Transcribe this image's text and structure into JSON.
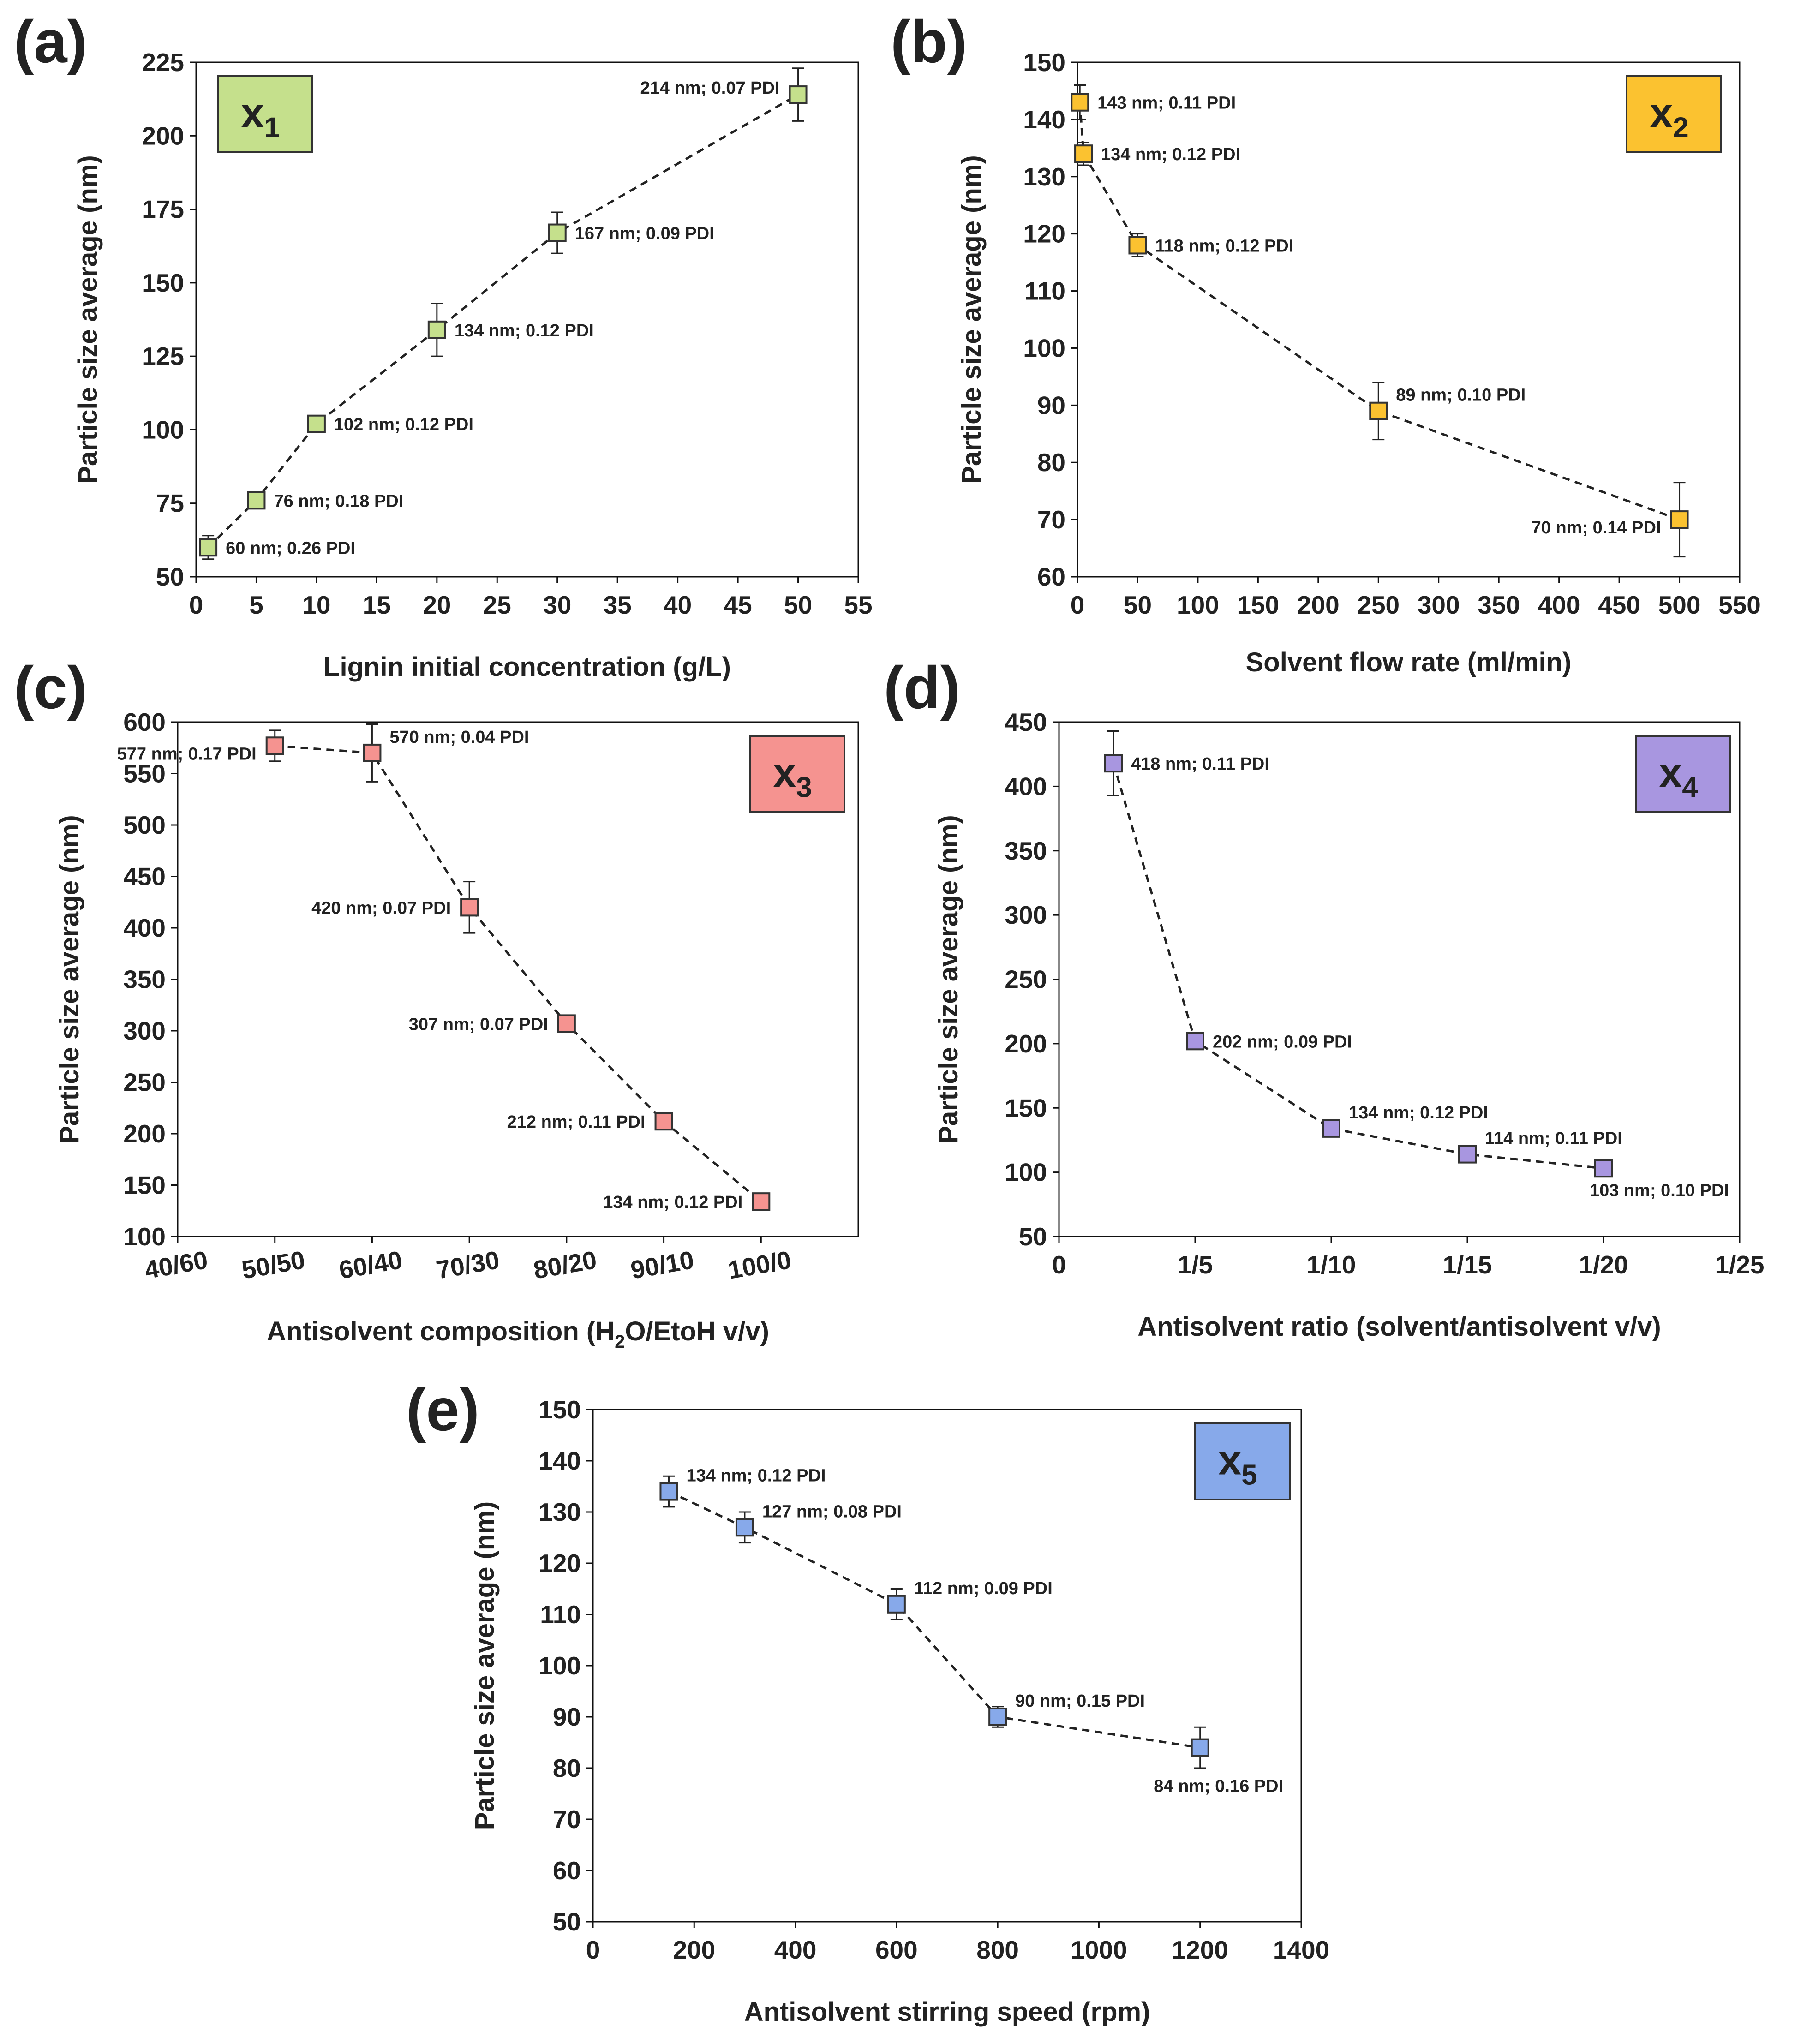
{
  "chart_data": [
    {
      "type": "line",
      "panel": "(a)",
      "badge": {
        "text": "x",
        "sub": "1",
        "color": "#c5e08c"
      },
      "marker_color": "#c5e08c",
      "xlabel": "Lignin initial concentration (g/L)",
      "ylabel": "Particle size average (nm)",
      "xlim": [
        0,
        55
      ],
      "ylim": [
        50,
        225
      ],
      "xticks": [
        0,
        5,
        10,
        15,
        20,
        25,
        30,
        35,
        40,
        45,
        50,
        55
      ],
      "yticks": [
        50,
        75,
        100,
        125,
        150,
        175,
        200,
        225
      ],
      "points": [
        {
          "x": 1,
          "y": 60,
          "err": 4,
          "label": "60 nm; 0.26 PDI",
          "pos": "right"
        },
        {
          "x": 5,
          "y": 76,
          "err": 0,
          "label": "76 nm; 0.18 PDI",
          "pos": "right"
        },
        {
          "x": 10,
          "y": 102,
          "err": 0,
          "label": "102 nm; 0.12 PDI",
          "pos": "right"
        },
        {
          "x": 20,
          "y": 134,
          "err": 9,
          "label": "134 nm; 0.12 PDI",
          "pos": "right"
        },
        {
          "x": 30,
          "y": 167,
          "err": 7,
          "label": "167 nm; 0.09 PDI",
          "pos": "right"
        },
        {
          "x": 50,
          "y": 214,
          "err": 9,
          "label": "214 nm; 0.07 PDI",
          "pos": "left-up"
        }
      ]
    },
    {
      "type": "line",
      "panel": "(b)",
      "badge": {
        "text": "x",
        "sub": "2",
        "color": "#fbc230"
      },
      "marker_color": "#fbc230",
      "xlabel": "Solvent flow rate (ml/min)",
      "ylabel": "Particle size average (nm)",
      "xlim": [
        0,
        550
      ],
      "ylim": [
        60,
        150
      ],
      "xticks": [
        0,
        50,
        100,
        150,
        200,
        250,
        300,
        350,
        400,
        450,
        500,
        550
      ],
      "yticks": [
        60,
        70,
        80,
        90,
        100,
        110,
        120,
        130,
        140,
        150
      ],
      "points": [
        {
          "x": 2,
          "y": 143,
          "err": 3,
          "label": "143 nm; 0.11 PDI",
          "pos": "right"
        },
        {
          "x": 5,
          "y": 134,
          "err": 2,
          "label": "134 nm; 0.12 PDI",
          "pos": "right"
        },
        {
          "x": 50,
          "y": 118,
          "err": 2,
          "label": "118 nm; 0.12 PDI",
          "pos": "right"
        },
        {
          "x": 250,
          "y": 89,
          "err": 5,
          "label": "89 nm; 0.10 PDI",
          "pos": "right-up"
        },
        {
          "x": 500,
          "y": 70,
          "err": 6.5,
          "label": "70 nm; 0.14 PDI",
          "pos": "left-down"
        }
      ]
    },
    {
      "type": "line",
      "panel": "(c)",
      "badge": {
        "text": "x",
        "sub": "3",
        "color": "#f59390"
      },
      "marker_color": "#f59390",
      "xlabel": "Antisolvent composition (H",
      "xlabel_sub": "2",
      "xlabel_tail": "O/EtoH v/v)",
      "ylabel": "Particle size average (nm)",
      "xlim": [
        0,
        7
      ],
      "ylim": [
        100,
        600
      ],
      "xticks": [
        "40/60",
        "50/50",
        "60/40",
        "70/30",
        "80/20",
        "90/10",
        "100/0"
      ],
      "yticks": [
        100,
        150,
        200,
        250,
        300,
        350,
        400,
        450,
        500,
        550,
        600
      ],
      "points": [
        {
          "x": 1,
          "y": 577,
          "err": 15,
          "label": "577 nm; 0.17 PDI",
          "pos": "left-down"
        },
        {
          "x": 2,
          "y": 570,
          "err": 28,
          "label": "570 nm; 0.04 PDI",
          "pos": "right-up"
        },
        {
          "x": 3,
          "y": 420,
          "err": 25,
          "label": "420 nm; 0.07 PDI",
          "pos": "left"
        },
        {
          "x": 4,
          "y": 307,
          "err": 8,
          "label": "307 nm; 0.07 PDI",
          "pos": "left"
        },
        {
          "x": 5,
          "y": 212,
          "err": 4,
          "label": "212 nm; 0.11 PDI",
          "pos": "left"
        },
        {
          "x": 6,
          "y": 134,
          "err": 4,
          "label": "134 nm; 0.12 PDI",
          "pos": "left"
        }
      ]
    },
    {
      "type": "line",
      "panel": "(d)",
      "badge": {
        "text": "x",
        "sub": "4",
        "color": "#a896e0"
      },
      "marker_color": "#a896e0",
      "xlabel": "Antisolvent ratio (solvent/antisolvent v/v)",
      "ylabel": "Particle size average (nm)",
      "xlim": [
        0,
        25
      ],
      "ylim": [
        50,
        450
      ],
      "xticks": [
        "0",
        "1/5",
        "1/10",
        "1/15",
        "1/20",
        "1/25"
      ],
      "yticks": [
        50,
        100,
        150,
        200,
        250,
        300,
        350,
        400,
        450
      ],
      "points": [
        {
          "x": 2,
          "y": 418,
          "err": 25,
          "label": "418 nm; 0.11 PDI",
          "pos": "right"
        },
        {
          "x": 5,
          "y": 202,
          "err": 6,
          "label": "202 nm; 0.09 PDI",
          "pos": "right"
        },
        {
          "x": 10,
          "y": 134,
          "err": 4,
          "label": "134 nm; 0.12 PDI",
          "pos": "right-up"
        },
        {
          "x": 15,
          "y": 114,
          "err": 4,
          "label": "114 nm; 0.11 PDI",
          "pos": "right-up"
        },
        {
          "x": 20,
          "y": 103,
          "err": 3,
          "label": "103 nm; 0.10 PDI",
          "pos": "right-down"
        }
      ]
    },
    {
      "type": "line",
      "panel": "(e)",
      "badge": {
        "text": "x",
        "sub": "5",
        "color": "#87a9ea"
      },
      "marker_color": "#87a9ea",
      "xlabel": "Antisolvent stirring speed (rpm)",
      "ylabel": "Particle size average (nm)",
      "xlim": [
        0,
        1400
      ],
      "ylim": [
        50,
        150
      ],
      "xticks": [
        0,
        200,
        400,
        600,
        800,
        1000,
        1200,
        1400
      ],
      "yticks": [
        50,
        60,
        70,
        80,
        90,
        100,
        110,
        120,
        130,
        140,
        150
      ],
      "points": [
        {
          "x": 150,
          "y": 134,
          "err": 3,
          "label": "134 nm; 0.12 PDI",
          "pos": "right-up"
        },
        {
          "x": 300,
          "y": 127,
          "err": 3,
          "label": "127 nm; 0.08 PDI",
          "pos": "right-up"
        },
        {
          "x": 600,
          "y": 112,
          "err": 3,
          "label": "112 nm; 0.09 PDI",
          "pos": "right-up"
        },
        {
          "x": 800,
          "y": 90,
          "err": 2,
          "label": "90 nm; 0.15 PDI",
          "pos": "right-up"
        },
        {
          "x": 1200,
          "y": 84,
          "err": 4,
          "label": "84 nm; 0.16 PDI",
          "pos": "center-down"
        }
      ]
    }
  ]
}
